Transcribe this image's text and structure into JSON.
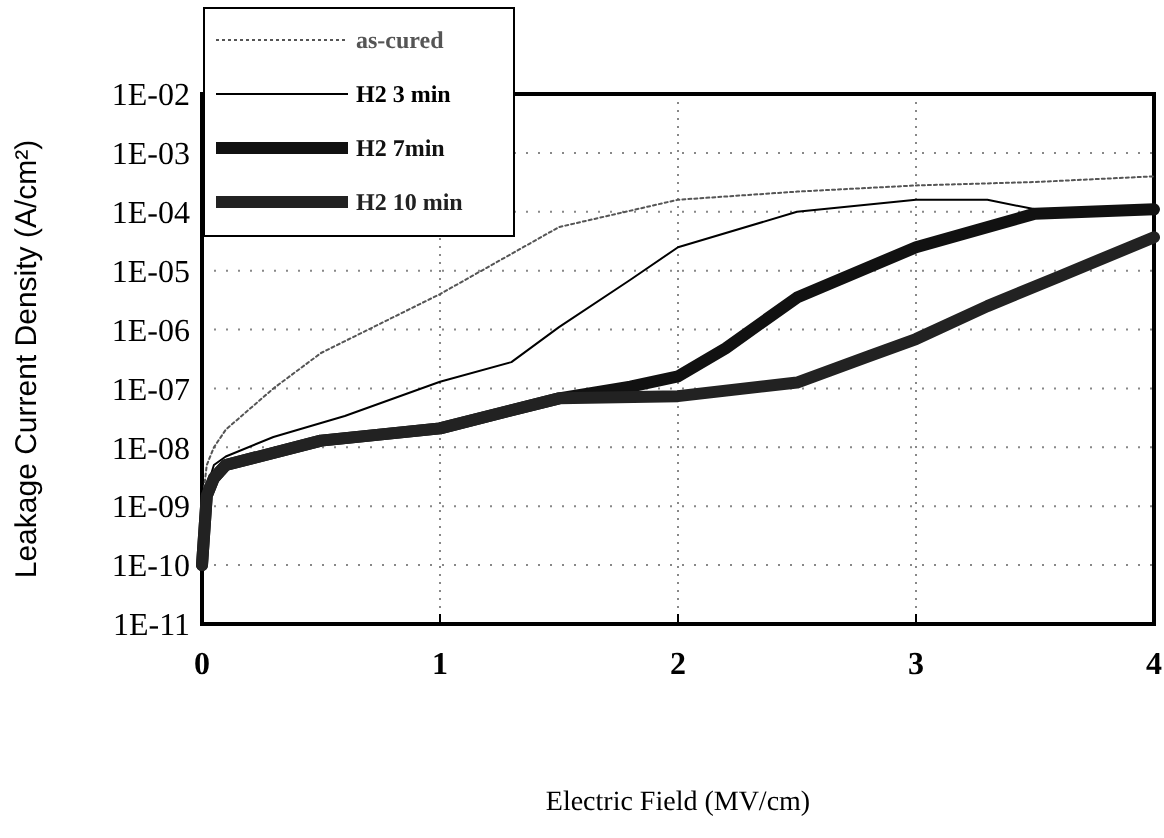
{
  "chart_data": {
    "type": "line",
    "xlabel": "Electric Field (MV/cm)",
    "ylabel": "Leakage Current Density (A/cm²)",
    "log": "y",
    "grid": true,
    "legend": "top left",
    "line_style": "solid",
    "marker": "none",
    "xlim": [
      0,
      4
    ],
    "xticks": [
      0,
      1,
      2,
      3,
      4
    ],
    "ylim": [
      1e-11,
      0.01
    ],
    "yticks": [
      {
        "value": 0.01,
        "label": "1E-02"
      },
      {
        "value": 0.001,
        "label": "1E-03"
      },
      {
        "value": 0.0001,
        "label": "1E-04"
      },
      {
        "value": 1e-05,
        "label": "1E-05"
      },
      {
        "value": 1e-06,
        "label": "1E-06"
      },
      {
        "value": 1e-07,
        "label": "1E-07"
      },
      {
        "value": 1e-08,
        "label": "1E-08"
      },
      {
        "value": 1e-09,
        "label": "1E-09"
      },
      {
        "value": 1e-10,
        "label": "1E-10"
      },
      {
        "value": 1e-11,
        "label": "1E-11"
      }
    ],
    "series": [
      {
        "name": "as-cured",
        "color": "#555555",
        "line_style": "dotted",
        "x": [
          0,
          0.02,
          0.05,
          0.1,
          0.3,
          0.5,
          1.0,
          1.5,
          2.0,
          2.5,
          3.0,
          3.5,
          4.0
        ],
        "values": [
          1e-09,
          5e-09,
          1e-08,
          2e-08,
          1e-07,
          4e-07,
          4e-06,
          5.5e-05,
          0.00016,
          0.00022,
          0.00028,
          0.00032,
          0.0004
        ]
      },
      {
        "name": "H2 3 min",
        "color": "#000000",
        "line_style": "solid",
        "x": [
          0,
          0.02,
          0.05,
          0.1,
          0.3,
          0.6,
          1.0,
          1.3,
          1.5,
          1.8,
          2.0,
          2.5,
          3.0,
          3.3,
          3.5,
          4.0
        ],
        "values": [
          1e-10,
          2e-09,
          5e-09,
          7e-09,
          1.5e-08,
          3.4e-08,
          1.3e-07,
          2.8e-07,
          1.1e-06,
          7e-06,
          2.5e-05,
          0.0001,
          0.00016,
          0.00016,
          0.00011,
          0.00011
        ]
      },
      {
        "name": "H2 7min",
        "color": "#111111",
        "line_style": "solid",
        "x": [
          0,
          0.02,
          0.05,
          0.1,
          0.5,
          1.0,
          1.5,
          1.8,
          2.0,
          2.2,
          2.5,
          3.0,
          3.5,
          4.0
        ],
        "values": [
          1e-10,
          1.5e-09,
          3e-09,
          5e-09,
          1.3e-08,
          2.1e-08,
          6.8e-08,
          1.07e-07,
          1.6e-07,
          4.8e-07,
          3.5e-06,
          2.5e-05,
          9.3e-05,
          0.00011
        ]
      },
      {
        "name": "H2 10 min",
        "color": "#222222",
        "x": [
          0,
          0.02,
          0.05,
          0.1,
          0.5,
          1.0,
          1.5,
          2.0,
          2.5,
          2.8,
          3.0,
          3.3,
          3.6,
          4.0
        ],
        "values": [
          1e-10,
          1.5e-09,
          3e-09,
          5e-09,
          1.3e-08,
          2.1e-08,
          6.8e-08,
          7.4e-08,
          1.26e-07,
          3.5e-07,
          6.9e-07,
          2.5e-06,
          7.9e-06,
          3.7e-05
        ]
      }
    ]
  }
}
